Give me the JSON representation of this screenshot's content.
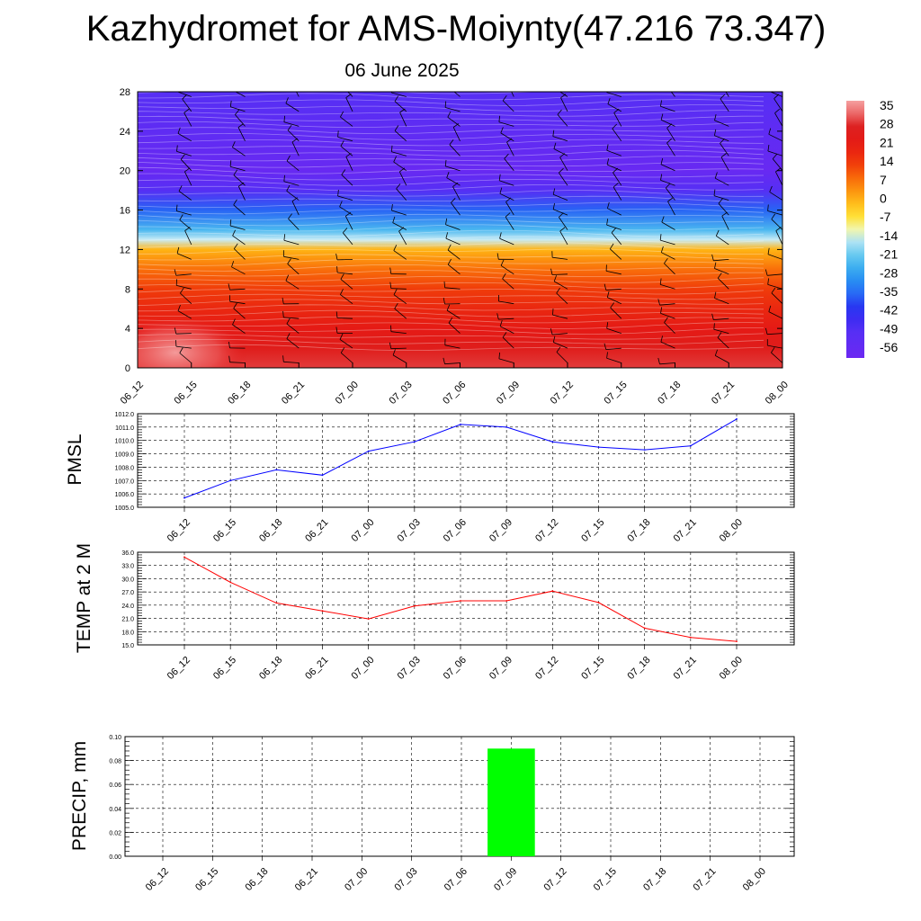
{
  "title": "Kazhydromet for AMS-Moiynty(47.216 73.347)",
  "subtitle": "06 June 2025",
  "chart_data": [
    {
      "type": "heatmap",
      "x_categories": [
        "06_12",
        "06_15",
        "06_18",
        "06_21",
        "07_00",
        "07_03",
        "07_06",
        "07_09",
        "07_12",
        "07_15",
        "07_18",
        "07_21",
        "08_00"
      ],
      "y_ticks": [
        0,
        4,
        8,
        12,
        16,
        20,
        24,
        28
      ],
      "ylim": [
        0,
        28
      ],
      "colorbar_ticks": [
        35,
        28,
        21,
        14,
        7,
        0,
        -7,
        -14,
        -21,
        -28,
        -35,
        -42,
        -49,
        -56
      ],
      "colorbar_range": [
        -60,
        38
      ],
      "layers": [
        {
          "height": 0,
          "temp": 30
        },
        {
          "height": 2,
          "temp": 26
        },
        {
          "height": 4,
          "temp": 22
        },
        {
          "height": 6,
          "temp": 18
        },
        {
          "height": 8,
          "temp": 14
        },
        {
          "height": 10,
          "temp": 8
        },
        {
          "height": 12,
          "temp": 0
        },
        {
          "height": 13,
          "temp": -14
        },
        {
          "height": 14,
          "temp": -24
        },
        {
          "height": 16,
          "temp": -36
        },
        {
          "height": 18,
          "temp": -50
        },
        {
          "height": 20,
          "temp": -58
        },
        {
          "height": 24,
          "temp": -54
        },
        {
          "height": 28,
          "temp": -50
        }
      ],
      "warm_spot_temp": 35,
      "colors": {
        "hot": "#e41a1a",
        "warm_spot": "#f07f7f",
        "cold": "#6c2cf2"
      }
    },
    {
      "type": "line",
      "ylabel": "PMSL",
      "categories": [
        "06_12",
        "06_15",
        "06_18",
        "06_21",
        "07_00",
        "07_03",
        "07_06",
        "07_09",
        "07_12",
        "07_15",
        "07_18",
        "07_21",
        "08_00"
      ],
      "ylim": [
        1005.0,
        1012.0
      ],
      "y_ticks": [
        "1005.0",
        "1006.0",
        "1007.0",
        "1008.0",
        "1009.0",
        "1010.0",
        "1011.0",
        "1012.0"
      ],
      "values": [
        1005.7,
        1007.0,
        1007.8,
        1007.4,
        1009.2,
        1009.9,
        1011.2,
        1011.0,
        1009.9,
        1009.5,
        1009.3,
        1009.6,
        1011.6
      ],
      "color": "#0000ff",
      "grid": true
    },
    {
      "type": "line",
      "ylabel": "TEMP at 2 M",
      "categories": [
        "06_12",
        "06_15",
        "06_18",
        "06_21",
        "07_00",
        "07_03",
        "07_06",
        "07_09",
        "07_12",
        "07_15",
        "07_18",
        "07_21",
        "08_00"
      ],
      "ylim": [
        15.0,
        36.0
      ],
      "y_ticks": [
        "15.0",
        "18.0",
        "21.0",
        "24.0",
        "27.0",
        "30.0",
        "33.0",
        "36.0"
      ],
      "values": [
        34.9,
        29.2,
        24.5,
        22.7,
        20.9,
        23.8,
        25.0,
        25.0,
        27.2,
        24.6,
        18.8,
        16.7,
        15.8
      ],
      "color": "#ff0000",
      "grid": true
    },
    {
      "type": "bar",
      "ylabel": "PRECIP, mm",
      "categories": [
        "06_12",
        "06_15",
        "06_18",
        "06_21",
        "07_00",
        "07_03",
        "07_06",
        "07_09",
        "07_12",
        "07_15",
        "07_18",
        "07_21",
        "08_00"
      ],
      "ylim": [
        0.0,
        0.1
      ],
      "y_ticks": [
        "0.00",
        "0.02",
        "0.04",
        "0.06",
        "0.08",
        "0.10"
      ],
      "values": [
        0,
        0,
        0,
        0,
        0,
        0,
        0,
        0.09,
        0,
        0,
        0,
        0,
        0
      ],
      "color": "#00ff00",
      "grid": true
    }
  ]
}
